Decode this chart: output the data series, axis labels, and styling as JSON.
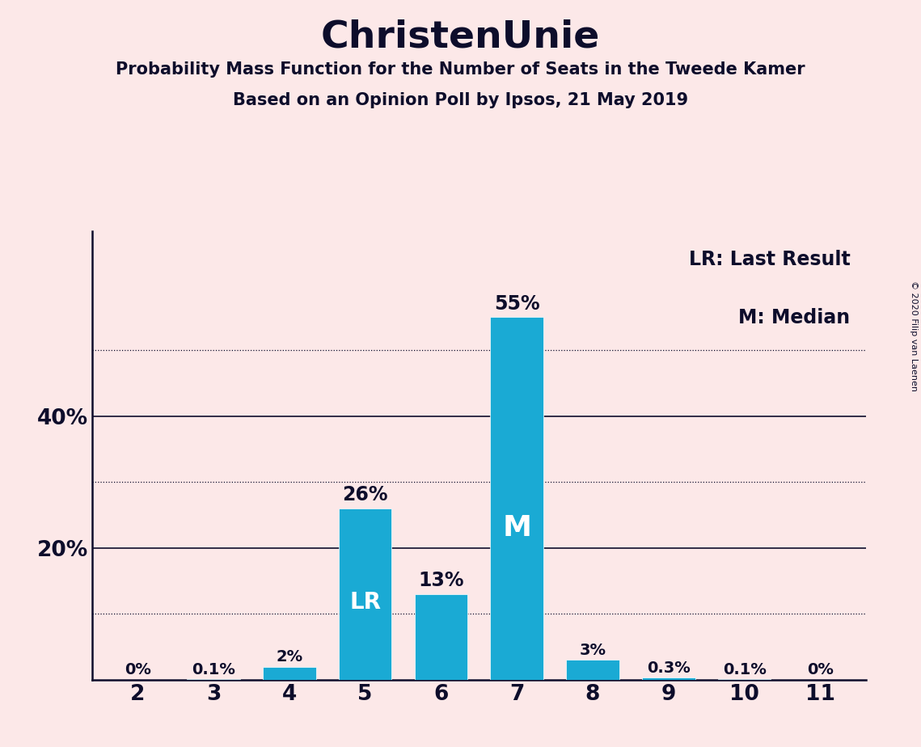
{
  "title": "ChristenUnie",
  "subtitle1": "Probability Mass Function for the Number of Seats in the Tweede Kamer",
  "subtitle2": "Based on an Opinion Poll by Ipsos, 21 May 2019",
  "copyright": "© 2020 Filip van Laenen",
  "categories": [
    2,
    3,
    4,
    5,
    6,
    7,
    8,
    9,
    10,
    11
  ],
  "values": [
    0.0,
    0.1,
    2.0,
    26.0,
    13.0,
    55.0,
    3.0,
    0.3,
    0.1,
    0.0
  ],
  "labels": [
    "0%",
    "0.1%",
    "2%",
    "26%",
    "13%",
    "55%",
    "3%",
    "0.3%",
    "0.1%",
    "0%"
  ],
  "bar_color": "#1aaad4",
  "background_color": "#fce8e8",
  "text_color": "#0d0d2b",
  "major_gridlines": [
    20,
    40
  ],
  "minor_gridlines": [
    10,
    30,
    50
  ],
  "lr_bar_index": 3,
  "median_bar_index": 5,
  "legend_lr": "LR: Last Result",
  "legend_m": "M: Median",
  "ylim_max": 68
}
